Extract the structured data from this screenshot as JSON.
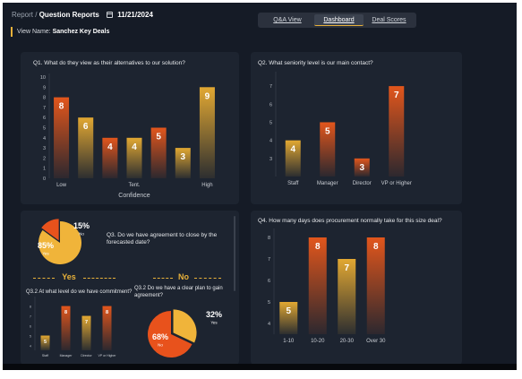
{
  "header": {
    "breadcrumb_prefix": "Report /",
    "breadcrumb_page": "Question Reports",
    "date": "11/21/2024",
    "view_label": "View Name:",
    "view_name": "Sanchez Key Deals"
  },
  "tabs": [
    {
      "label": "Q&A View"
    },
    {
      "label": "Dashboard"
    },
    {
      "label": "Deal Scores"
    }
  ],
  "colors": {
    "accent": "#e8b13a",
    "bar_orange": "#e2561c",
    "bar_gold": "#e2a832",
    "pie_orange": "#e8521c",
    "pie_gold": "#f0b43a"
  },
  "chart_data": [
    {
      "type": "bar",
      "title": "Q1. What do they view as their alternatives to our solution?",
      "xlabel": "Confidence",
      "categories": [
        "Low",
        "",
        "",
        "Tent.",
        "",
        "",
        "High"
      ],
      "values": [
        8,
        6,
        4,
        4,
        5,
        3,
        9
      ],
      "bar_colors": [
        "#e2561c",
        "#e2a832",
        "#e2561c",
        "#e2a832",
        "#e2561c",
        "#e2a832",
        "#e2a832"
      ],
      "y_ticks": [
        "0",
        "1",
        "2",
        "3",
        "4",
        "5",
        "6",
        "7",
        "8",
        "9",
        "10"
      ],
      "ylim": [
        0,
        10
      ]
    },
    {
      "type": "bar",
      "title": "Q2. What seniority level is our main contact?",
      "categories": [
        "Staff",
        "Manager",
        "Director",
        "VP or Higher"
      ],
      "values": [
        4,
        5,
        3,
        7
      ],
      "bar_colors": [
        "#e2a832",
        "#e2561c",
        "#e2561c",
        "#e2561c"
      ],
      "y_ticks": [
        "3",
        "4",
        "5",
        "6",
        "7"
      ],
      "ylim": [
        2,
        7.6
      ]
    },
    {
      "type": "pie",
      "title": "Q3. Do we have agreement to close by the forecasted date?",
      "slices": [
        {
          "name": "Yes",
          "label": "85%",
          "value": 85,
          "color": "#f0b43a"
        },
        {
          "name": "No",
          "label": "15%",
          "value": 15,
          "color": "#e8521c"
        }
      ]
    },
    {
      "type": "bar",
      "section": "Yes",
      "title": "Q3.2 At what level do we have commitment?",
      "categories": [
        "Staff",
        "Manager",
        "Director",
        "VP or Higher"
      ],
      "values": [
        5,
        8,
        7,
        8
      ],
      "bar_colors": [
        "#e2a832",
        "#e2561c",
        "#e2a832",
        "#e2561c"
      ],
      "y_ticks": [
        "4",
        "5",
        "6",
        "7",
        "8"
      ],
      "ylim": [
        3.5,
        8.6
      ]
    },
    {
      "type": "pie",
      "section": "No",
      "title": "Q3.2 Do we have a clear plan to gain agreement?",
      "slices": [
        {
          "name": "Yes",
          "label": "32%",
          "value": 32,
          "color": "#f0b43a"
        },
        {
          "name": "No",
          "label": "68%",
          "value": 68,
          "color": "#e8521c"
        }
      ]
    },
    {
      "type": "bar",
      "title": "Q4. How many days does procurement normally take for this size deal?",
      "categories": [
        "1-10",
        "10-20",
        "20-30",
        "Over 30"
      ],
      "values": [
        5,
        8,
        7,
        8
      ],
      "bar_colors": [
        "#e2a832",
        "#e2561c",
        "#e2a832",
        "#e2561c"
      ],
      "y_ticks": [
        "4",
        "5",
        "6",
        "7",
        "8"
      ],
      "ylim": [
        3.5,
        8.25
      ]
    }
  ]
}
